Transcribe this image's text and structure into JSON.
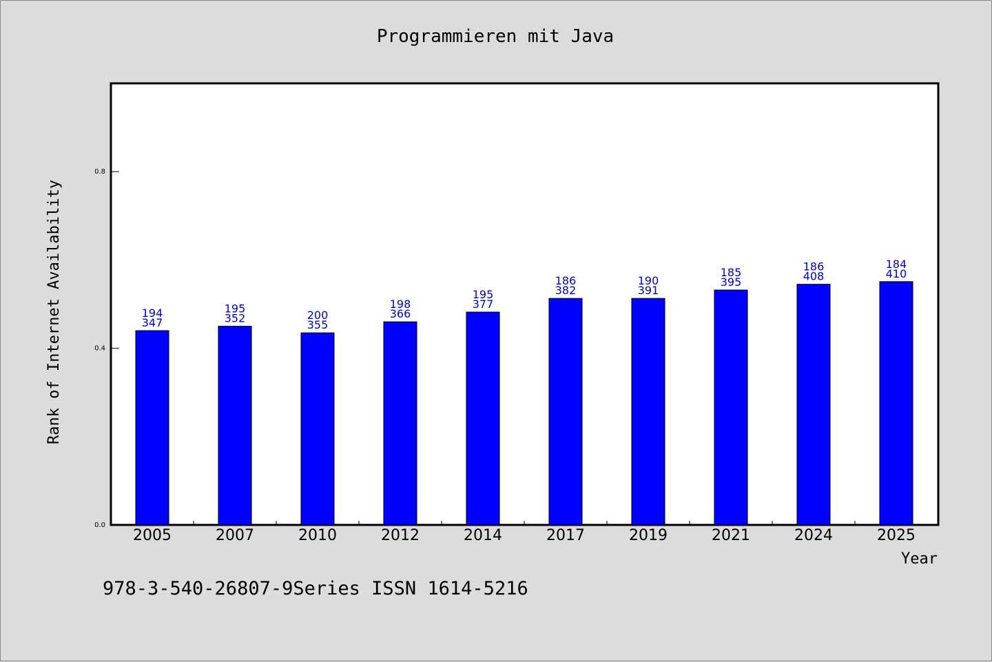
{
  "chart_data": {
    "type": "bar",
    "title": "Programmieren mit Java",
    "xlabel": "Year",
    "ylabel": "Rank of Internet Availability",
    "categories": [
      "2005",
      "2007",
      "2010",
      "2012",
      "2014",
      "2017",
      "2019",
      "2021",
      "2024",
      "2025"
    ],
    "values": [
      0.44,
      0.45,
      0.435,
      0.46,
      0.482,
      0.513,
      0.513,
      0.532,
      0.545,
      0.551
    ],
    "bar_labels_top": [
      "194",
      "195",
      "200",
      "198",
      "195",
      "186",
      "190",
      "185",
      "186",
      "184"
    ],
    "bar_labels_bottom": [
      "347",
      "352",
      "355",
      "366",
      "377",
      "382",
      "391",
      "395",
      "408",
      "410"
    ],
    "yticks": [
      0.0,
      0.4,
      0.8
    ],
    "ytick_labels": [
      "0.0",
      "0.4",
      "0.8"
    ],
    "ylim": [
      0,
      1.0
    ],
    "grid": false,
    "bar_color": "#0000ff",
    "label_color": "#0000cc"
  },
  "footer": {
    "text": "978-3-540-26807-9Series ISSN 1614-5216"
  }
}
